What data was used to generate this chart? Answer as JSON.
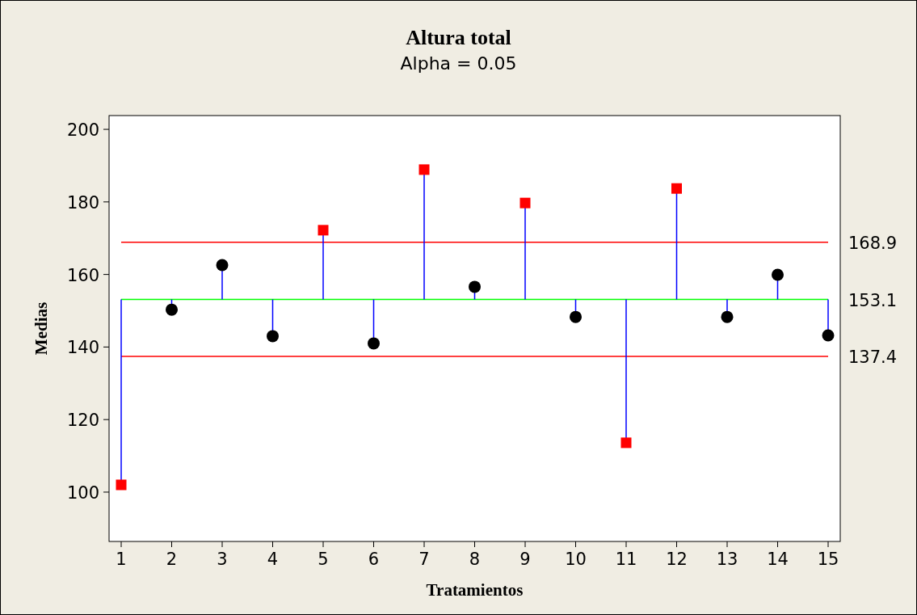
{
  "chart_data": {
    "type": "scatter",
    "title": "Altura total",
    "subtitle": "Alpha = 0.05",
    "xlabel": "Tratamientos",
    "ylabel": "Medias",
    "x": [
      1,
      2,
      3,
      4,
      5,
      6,
      7,
      8,
      9,
      10,
      11,
      12,
      13,
      14,
      15
    ],
    "series": [
      {
        "color": "#000000",
        "marker": "circle",
        "values": [
          null,
          150.3,
          162.6,
          143.0,
          null,
          141.0,
          null,
          156.6,
          null,
          148.3,
          null,
          null,
          148.3,
          159.9,
          143.2
        ],
        "errors": [
          null,
          [
            150.3,
            153.1
          ],
          [
            153.1,
            162.6
          ],
          [
            143.0,
            153.1
          ],
          null,
          [
            141.0,
            153.1
          ],
          null,
          [
            153.1,
            156.6
          ],
          null,
          [
            148.3,
            153.1
          ],
          null,
          null,
          [
            148.3,
            153.1
          ],
          [
            153.1,
            159.9
          ],
          [
            143.2,
            153.1
          ]
        ]
      },
      {
        "color": "#ff0000",
        "marker": "square",
        "values": [
          102.0,
          null,
          null,
          null,
          172.2,
          null,
          188.9,
          null,
          179.7,
          null,
          113.6,
          183.7,
          null,
          null,
          null
        ],
        "errors": [
          [
            102.0,
            153.1
          ],
          null,
          null,
          null,
          [
            153.1,
            172.2
          ],
          null,
          [
            153.1,
            188.9
          ],
          null,
          [
            153.1,
            179.7
          ],
          null,
          [
            113.6,
            153.1
          ],
          [
            153.1,
            183.7
          ],
          null,
          null,
          null
        ]
      }
    ],
    "xlim": [
      0.76,
      15.24
    ],
    "xticks": [
      1,
      2,
      3,
      4,
      5,
      6,
      7,
      8,
      9,
      10,
      11,
      12,
      13,
      14,
      15
    ],
    "ylim": [
      86.4,
      203.8
    ],
    "yticks": [
      100,
      120,
      140,
      160,
      180,
      200
    ],
    "ref_lines": [
      {
        "axis": "y",
        "value": 168.9,
        "label": "168.9",
        "color": "#ff0000"
      },
      {
        "axis": "y",
        "value": 153.1,
        "label": "153.1",
        "color": "#00ff00"
      },
      {
        "axis": "y",
        "value": 137.4,
        "label": "137.4",
        "color": "#ff0000"
      }
    ],
    "grid": false
  }
}
